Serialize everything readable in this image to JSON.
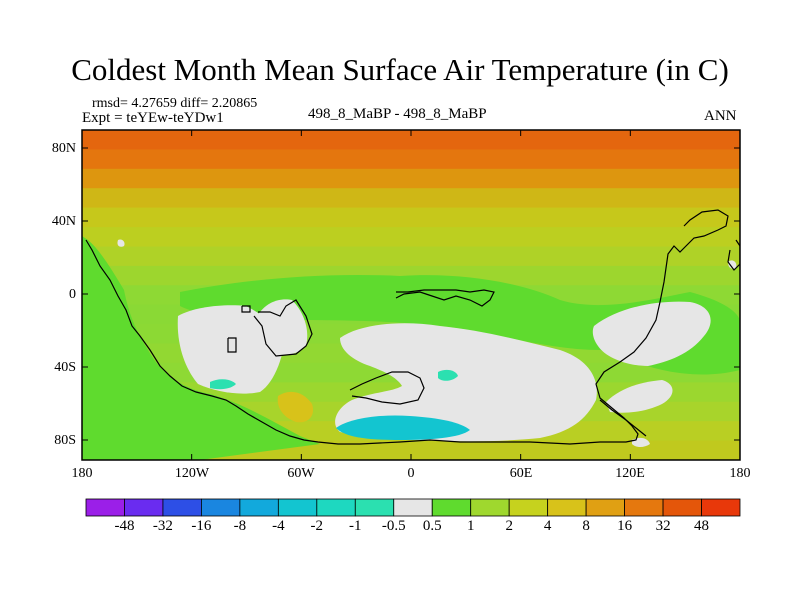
{
  "title": "Coldest Month Mean Surface Air Temperature (in C)",
  "stats": "rmsd= 4.27659 diff= 2.20865",
  "experiment": "Expt = teYEw-teYDw1",
  "comparison": "498_8_MaBP - 498_8_MaBP",
  "period": "ANN",
  "lat_labels": [
    "80N",
    "40N",
    "0",
    "40S",
    "80S"
  ],
  "lon_labels": [
    "180",
    "120W",
    "60W",
    "0",
    "60E",
    "120E",
    "180"
  ],
  "colorbar": {
    "labels": [
      "-48",
      "-32",
      "-16",
      "-8",
      "-4",
      "-2",
      "-1",
      "-0.5",
      "0.5",
      "1",
      "2",
      "4",
      "8",
      "16",
      "32",
      "48"
    ],
    "colors": [
      "#9b1fe8",
      "#6a2cf0",
      "#2d4fe6",
      "#1a86e0",
      "#12a9dc",
      "#13c5d0",
      "#1ed8c0",
      "#2be0b0",
      "#e6e6e6",
      "#5fdb2e",
      "#9fd82e",
      "#c6d21e",
      "#d8c21a",
      "#e0a013",
      "#e5780e",
      "#e4560a",
      "#e8380a"
    ]
  },
  "map": {
    "band_colors": [
      "#e4660e",
      "#e4760e",
      "#dd960f",
      "#cfb716",
      "#c6c81b",
      "#bccf20",
      "#afd227",
      "#9dd62e",
      "#8ed934",
      "#8ad935",
      "#8cd934",
      "#92d832",
      "#8ed934",
      "#9bd72f",
      "#a8d42b",
      "#b9cf23",
      "#c0c91e"
    ],
    "anomaly_colors": {
      "near_zero": "#e6e6e6",
      "positive_small": "#5fdb2e",
      "negative_small": "#2be0b0",
      "negative_medium": "#13c5d0",
      "positive_medium": "#d8c21a"
    }
  }
}
